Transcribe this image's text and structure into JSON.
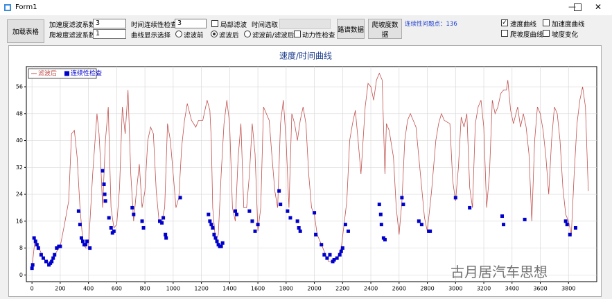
{
  "window": {
    "title": "Form1"
  },
  "toolbar": {
    "load_button": "加载表格",
    "accel_filter": {
      "label": "加速度滤波系数",
      "value": "3"
    },
    "slope_filter": {
      "label": "爬坡度滤波系数",
      "value": "1"
    },
    "time_check": {
      "label": "时间连续性检查",
      "value": "3"
    },
    "curve_select_label": "曲线显示选择",
    "local_filter": {
      "label": "局部滤波",
      "checked": false
    },
    "time_select_label": "时间选取",
    "radios": [
      {
        "label": "滤波前",
        "checked": false
      },
      {
        "label": "滤波后",
        "checked": true
      },
      {
        "label": "滤波前/滤波后",
        "checked": false
      }
    ],
    "power_check": {
      "label": "动力性检查",
      "checked": false
    },
    "road_button": "路谱数据",
    "slope_button": "爬坡度数据",
    "issue_count": "连续性问题点：136",
    "curves": [
      {
        "label": "速度曲线",
        "checked": true
      },
      {
        "label": "加速度曲线",
        "checked": false
      },
      {
        "label": "爬坡度曲线",
        "checked": false
      },
      {
        "label": "坡度变化",
        "checked": false
      }
    ]
  },
  "chart_data": {
    "type": "line",
    "title": "速度/时间曲线",
    "xlim": [
      -40,
      4000
    ],
    "ylim": [
      -2,
      62
    ],
    "xticks": [
      0,
      200,
      400,
      600,
      800,
      1000,
      1200,
      1400,
      1600,
      1800,
      2000,
      2200,
      2400,
      2600,
      2800,
      3000,
      3200,
      3400,
      3600,
      3800
    ],
    "yticks": [
      0,
      8,
      16,
      24,
      32,
      40,
      48,
      56
    ],
    "grid": true,
    "legend": "top-left",
    "series": [
      {
        "name": "滤波后",
        "type": "line",
        "color": "#c0504d",
        "x": [
          0,
          20,
          50,
          80,
          120,
          160,
          200,
          230,
          260,
          280,
          300,
          320,
          340,
          360,
          380,
          400,
          430,
          460,
          475,
          490,
          500,
          520,
          540,
          560,
          580,
          600,
          620,
          640,
          660,
          680,
          700,
          720,
          740,
          760,
          780,
          800,
          820,
          840,
          860,
          880,
          900,
          920,
          940,
          960,
          980,
          1000,
          1020,
          1040,
          1060,
          1080,
          1100,
          1130,
          1160,
          1180,
          1210,
          1240,
          1260,
          1270,
          1280,
          1300,
          1320,
          1340,
          1360,
          1380,
          1400,
          1420,
          1440,
          1460,
          1480,
          1500,
          1520,
          1540,
          1560,
          1580,
          1600,
          1620,
          1640,
          1660,
          1680,
          1700,
          1720,
          1740,
          1760,
          1780,
          1800,
          1820,
          1840,
          1860,
          1880,
          1900,
          1920,
          1940,
          1960,
          1980,
          2000,
          2020,
          2050,
          2080,
          2100,
          2130,
          2160,
          2190,
          2210,
          2230,
          2250,
          2270,
          2290,
          2310,
          2330,
          2360,
          2380,
          2400,
          2420,
          2440,
          2460,
          2480,
          2500,
          2510,
          2530,
          2560,
          2580,
          2600,
          2620,
          2640,
          2660,
          2680,
          2700,
          2720,
          2740,
          2760,
          2780,
          2800,
          2830,
          2860,
          2880,
          2900,
          2920,
          2960,
          2980,
          3000,
          3020,
          3040,
          3060,
          3080,
          3100,
          3120,
          3140,
          3160,
          3180,
          3200,
          3220,
          3240,
          3260,
          3280,
          3300,
          3320,
          3340,
          3360,
          3370,
          3390,
          3410,
          3440,
          3460,
          3480,
          3500,
          3520,
          3540,
          3560,
          3580,
          3600,
          3620,
          3640,
          3660,
          3680,
          3700,
          3720,
          3740,
          3760,
          3780,
          3800,
          3820,
          3840,
          3860,
          3880,
          3900,
          3920,
          3940
        ],
        "values": [
          2,
          10,
          8,
          5,
          3,
          6,
          8.5,
          15,
          22,
          42,
          43,
          35,
          20,
          10,
          8,
          8,
          30,
          48,
          42,
          30,
          20,
          40,
          50,
          20,
          14,
          15,
          26,
          50,
          42,
          55,
          30,
          16,
          25,
          33,
          20,
          25,
          40,
          44,
          42,
          25,
          16,
          16,
          20,
          45,
          40,
          30,
          20,
          23,
          38,
          46,
          51,
          46,
          44,
          46,
          46,
          52,
          49,
          40,
          20,
          10,
          12,
          30,
          45,
          52,
          45,
          20,
          16,
          35,
          45,
          20,
          20,
          30,
          45,
          36,
          13,
          20,
          50,
          48,
          46,
          35,
          25,
          20,
          45,
          52,
          40,
          20,
          48,
          45,
          40,
          46,
          50,
          45,
          30,
          20,
          18,
          12,
          9,
          6,
          4,
          4,
          5,
          8,
          15,
          22,
          40,
          45,
          49,
          40,
          30,
          50,
          57,
          56,
          52,
          58,
          60,
          58,
          30,
          45,
          43,
          35,
          20,
          12,
          22,
          40,
          46,
          48,
          46,
          44,
          35,
          26,
          17,
          13,
          25,
          40,
          45,
          48,
          46,
          45,
          28,
          22,
          32,
          47,
          44,
          48,
          26,
          20,
          45,
          50,
          52,
          44,
          20,
          30,
          52,
          48,
          50,
          54,
          55,
          55,
          58,
          49,
          45,
          50,
          44,
          48,
          44,
          36,
          16,
          40,
          50,
          48,
          43,
          35,
          24,
          40,
          50,
          48,
          40,
          26,
          18,
          16,
          12,
          30,
          45,
          52,
          56,
          50,
          25
        ]
      },
      {
        "name": "连续性检查",
        "type": "scatter",
        "color": "#0000cc",
        "x": [
          0,
          5,
          15,
          25,
          35,
          45,
          65,
          80,
          100,
          120,
          130,
          140,
          150,
          160,
          175,
          190,
          200,
          330,
          340,
          350,
          360,
          370,
          380,
          390,
          410,
          500,
          510,
          515,
          520,
          545,
          560,
          570,
          580,
          710,
          720,
          780,
          790,
          905,
          920,
          930,
          945,
          950,
          1050,
          1250,
          1260,
          1270,
          1280,
          1290,
          1300,
          1310,
          1320,
          1330,
          1340,
          1350,
          1440,
          1450,
          1540,
          1560,
          1580,
          1600,
          1750,
          1760,
          1810,
          1830,
          1880,
          1890,
          1900,
          2000,
          2010,
          2050,
          2070,
          2090,
          2110,
          2130,
          2140,
          2160,
          2180,
          2190,
          2200,
          2220,
          2240,
          2460,
          2470,
          2475,
          2490,
          2500,
          2620,
          2630,
          2740,
          2760,
          2810,
          2820,
          3000,
          3100,
          3330,
          3340,
          3490,
          3780,
          3790,
          3810,
          3850
        ],
        "values": [
          2,
          3,
          11,
          10,
          9,
          8,
          6,
          5,
          4,
          3,
          3.5,
          4,
          5,
          6,
          8,
          8.5,
          8.5,
          19,
          15,
          11,
          10,
          9,
          9,
          10,
          8,
          31,
          27,
          24,
          22,
          17,
          14,
          12.5,
          13,
          20,
          18,
          16,
          14,
          16,
          15.5,
          17,
          12,
          11,
          23,
          18,
          16,
          15,
          14,
          12,
          11,
          10,
          9,
          8.5,
          8.5,
          9.5,
          19,
          18,
          19,
          16,
          13,
          15,
          25,
          21,
          19,
          17,
          16,
          14,
          13,
          18.5,
          12,
          9,
          6,
          5,
          6,
          4,
          4.5,
          5,
          6,
          7,
          8,
          15,
          13,
          21,
          18,
          15,
          11,
          10.5,
          23,
          21,
          16,
          15,
          13,
          13,
          23,
          20,
          17.5,
          15,
          16.5,
          16,
          15,
          12,
          14
        ]
      }
    ]
  },
  "watermark": "古月居汽车思想"
}
